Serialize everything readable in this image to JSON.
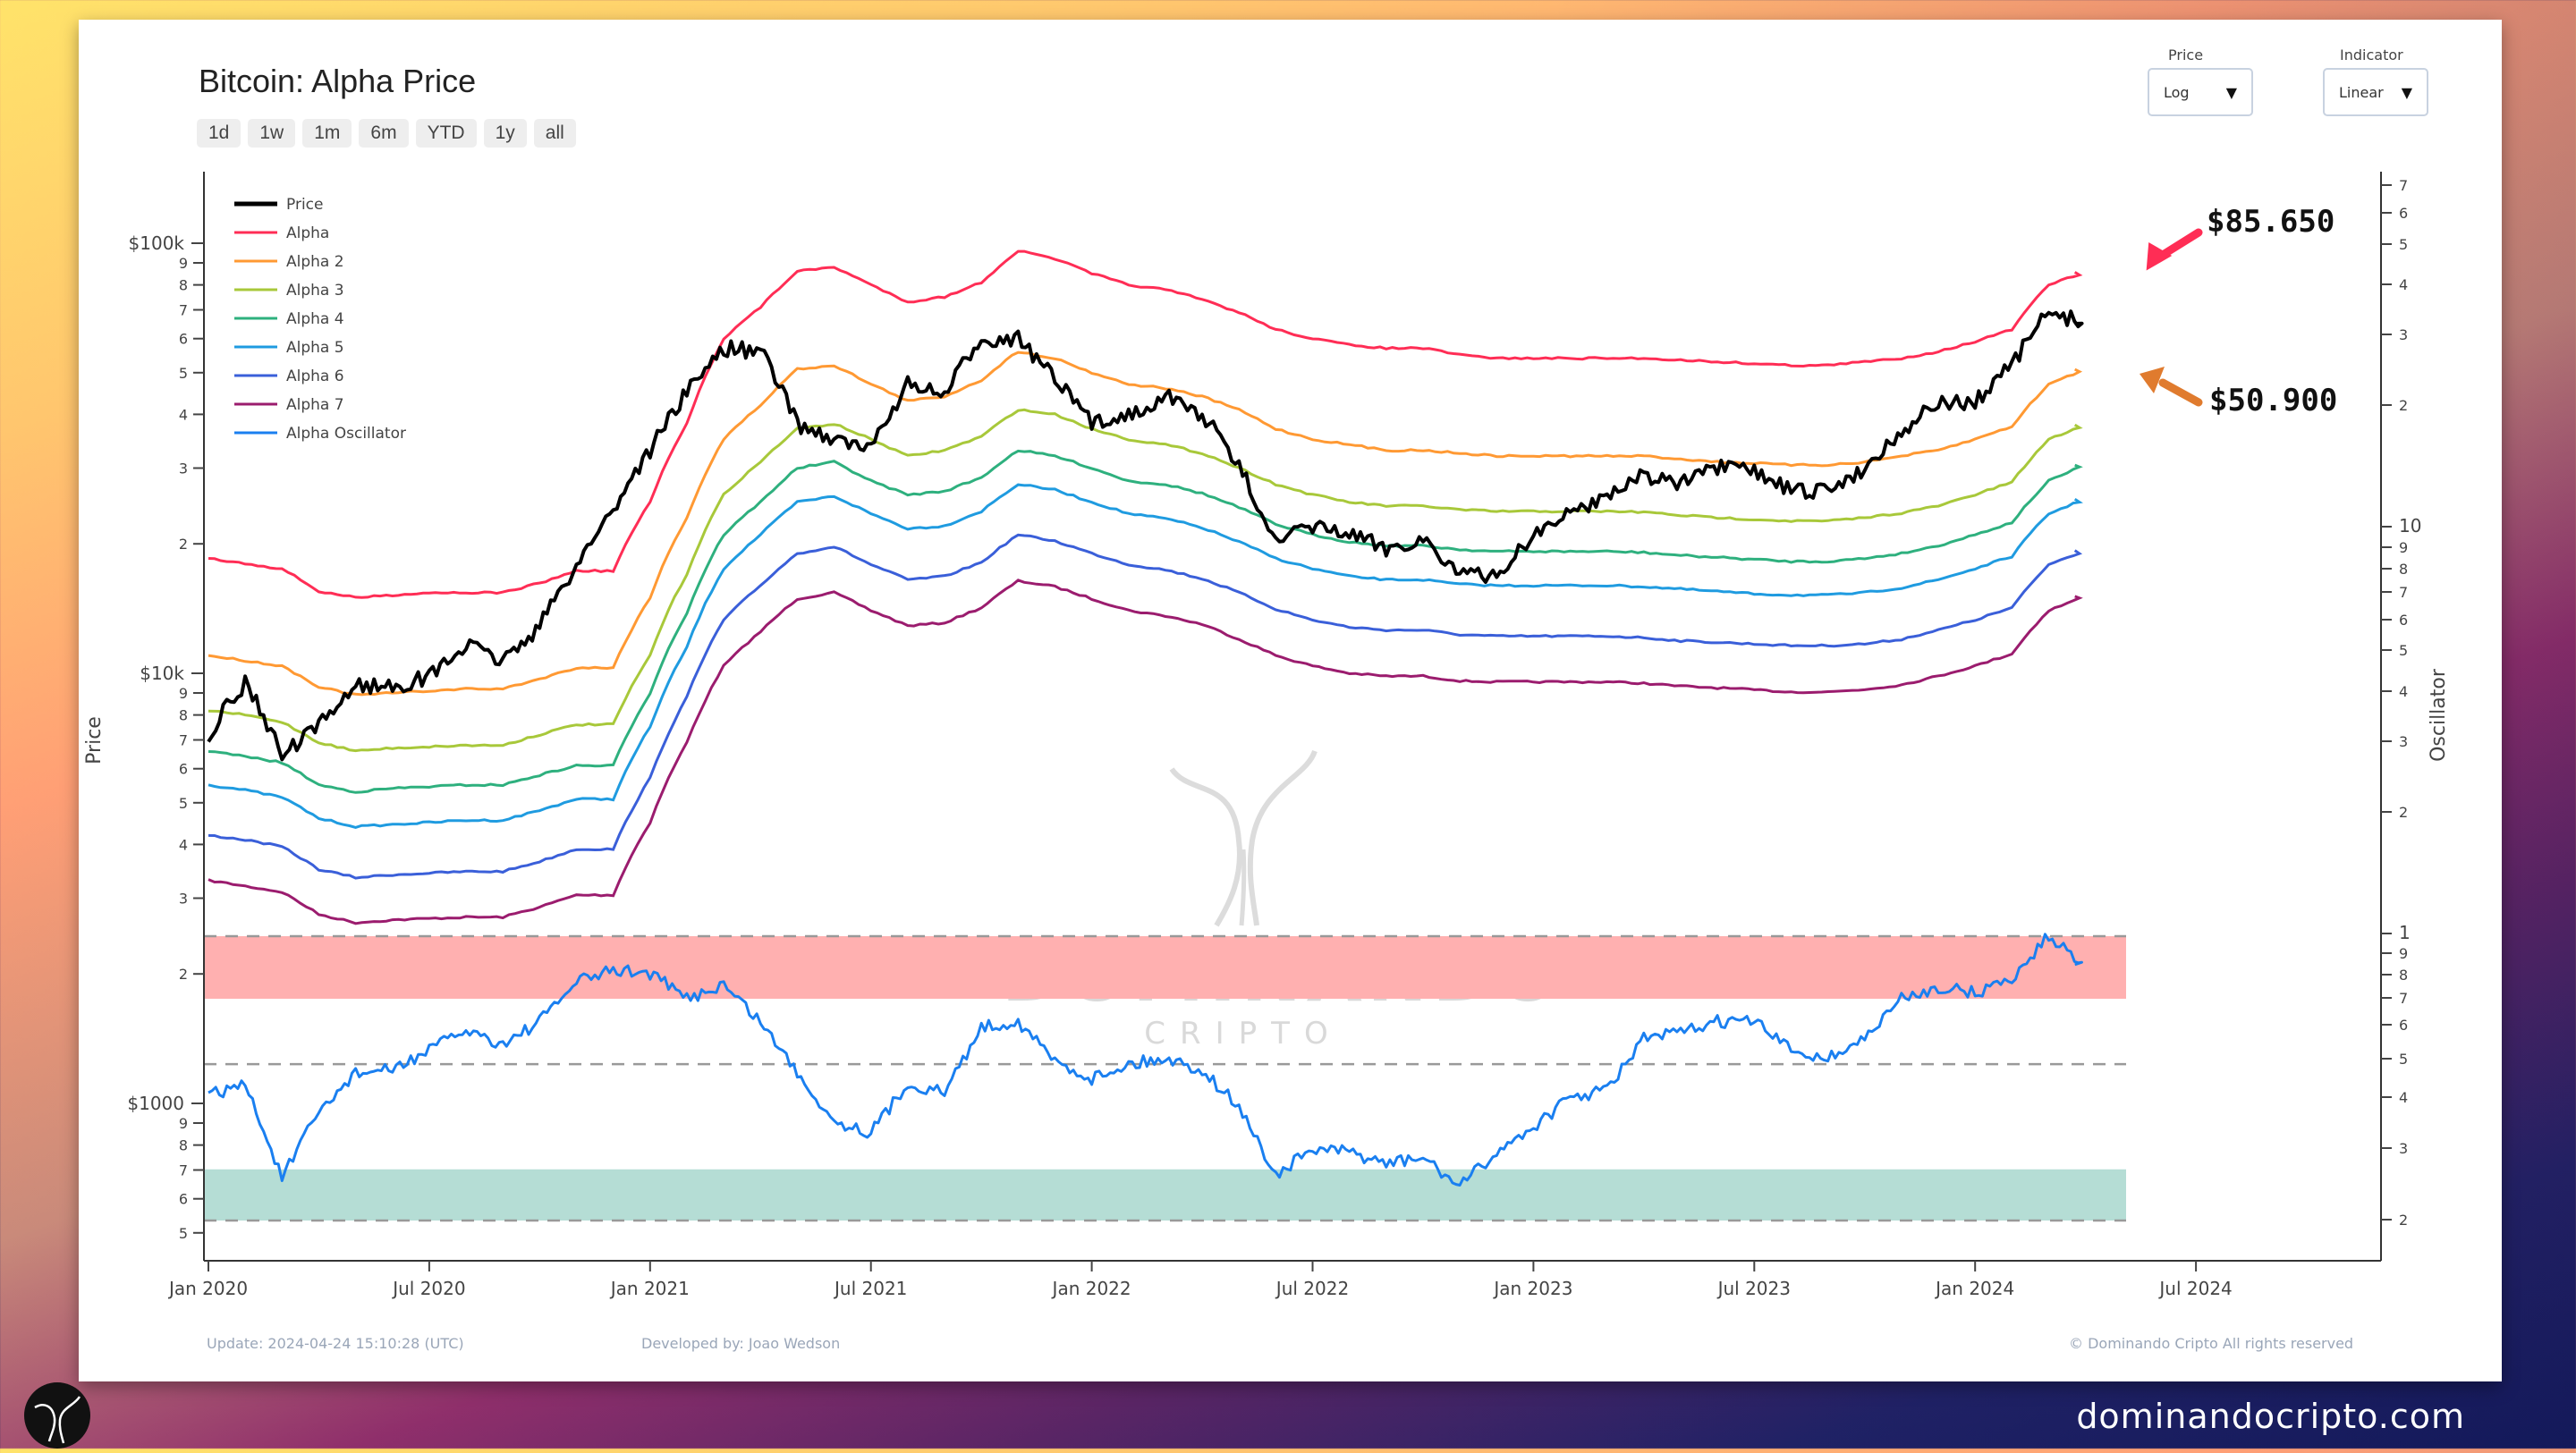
{
  "header": {
    "title": "Bitcoin: Alpha Price",
    "ranges": [
      "1d",
      "1w",
      "1m",
      "6m",
      "YTD",
      "1y",
      "all"
    ]
  },
  "controls": {
    "price_label": "Price",
    "price_value": "Log",
    "indicator_label": "Indicator",
    "indicator_value": "Linear"
  },
  "annotations": {
    "alpha_value": "$85.650",
    "alpha_color": "#ff2d55",
    "alpha2_value": "$50.900",
    "alpha2_color": "#e07b2e"
  },
  "footer": {
    "update": "Update: 2024-04-24 15:10:28 (UTC)",
    "developer": "Developed by: Joao Wedson",
    "copyright": "© Dominando Cripto All rights reserved"
  },
  "watermark": {
    "big": "DOMINANDO",
    "small": "CRIPTO"
  },
  "site": "dominandocripto.com",
  "chart_data": {
    "type": "line",
    "title": "Bitcoin: Alpha Price",
    "xlabel": "",
    "ylabel": "Price",
    "y2label": "Oscillator",
    "yscale": "log",
    "ylim": [
      470,
      140000
    ],
    "x_ticks": [
      "Jan 2020",
      "Jul 2020",
      "Jan 2021",
      "Jul 2021",
      "Jan 2022",
      "Jul 2022",
      "Jan 2023",
      "Jul 2023",
      "Jan 2024",
      "Jul 2024"
    ],
    "y_ticks_major": [
      "$1000",
      "$10k",
      "$100k"
    ],
    "y_ticks_minor": [
      "5",
      "6",
      "7",
      "8",
      "9",
      "2",
      "3",
      "4",
      "5",
      "6",
      "7",
      "8",
      "9",
      "2",
      "3",
      "4",
      "5",
      "6",
      "7",
      "8",
      "9"
    ],
    "y2_ticks": [
      "2",
      "3",
      "4",
      "5",
      "6",
      "7",
      "8",
      "9",
      "1",
      "2",
      "3",
      "4",
      "5",
      "6",
      "7",
      "8",
      "9",
      "10",
      "2",
      "3",
      "4",
      "5",
      "6",
      "7"
    ],
    "legend": [
      "Price",
      "Alpha",
      "Alpha 2",
      "Alpha 3",
      "Alpha 4",
      "Alpha 5",
      "Alpha 6",
      "Alpha 7",
      "Alpha Oscillator"
    ],
    "legend_position": "top-left",
    "grid": false,
    "x": [
      "2020-01",
      "2020-02",
      "2020-03",
      "2020-04",
      "2020-05",
      "2020-06",
      "2020-07",
      "2020-08",
      "2020-09",
      "2020-10",
      "2020-11",
      "2020-12",
      "2021-01",
      "2021-02",
      "2021-03",
      "2021-04",
      "2021-05",
      "2021-06",
      "2021-07",
      "2021-08",
      "2021-09",
      "2021-10",
      "2021-11",
      "2021-12",
      "2022-01",
      "2022-02",
      "2022-03",
      "2022-04",
      "2022-05",
      "2022-06",
      "2022-07",
      "2022-08",
      "2022-09",
      "2022-10",
      "2022-11",
      "2022-12",
      "2023-01",
      "2023-02",
      "2023-03",
      "2023-04",
      "2023-05",
      "2023-06",
      "2023-07",
      "2023-08",
      "2023-09",
      "2023-10",
      "2023-11",
      "2023-12",
      "2024-01",
      "2024-02",
      "2024-03",
      "2024-04"
    ],
    "series": [
      {
        "name": "Price",
        "color": "#000000",
        "width": 4,
        "values": [
          7200,
          9500,
          6400,
          7500,
          9400,
          9300,
          9800,
          11600,
          10700,
          12800,
          17800,
          24000,
          33000,
          45000,
          57000,
          56000,
          38000,
          35000,
          33000,
          47000,
          44000,
          60000,
          60000,
          48000,
          38000,
          40000,
          44000,
          40000,
          30000,
          20000,
          22000,
          21000,
          19500,
          20500,
          17000,
          16700,
          21000,
          23500,
          26000,
          29000,
          27500,
          30000,
          29500,
          26500,
          26500,
          30000,
          36500,
          42500,
          42500,
          52000,
          69000,
          65000
        ]
      },
      {
        "name": "Alpha",
        "color": "#ff2d55",
        "width": 3,
        "values": [
          18500,
          18000,
          17500,
          15500,
          15000,
          15200,
          15400,
          15400,
          15400,
          16200,
          17300,
          17300,
          25000,
          38000,
          60000,
          71000,
          86000,
          88000,
          80000,
          73000,
          75000,
          81000,
          96000,
          92000,
          85000,
          80000,
          78000,
          74000,
          69000,
          63000,
          60000,
          58000,
          57000,
          57000,
          55000,
          54000,
          54000,
          54000,
          54000,
          54000,
          53500,
          53000,
          52500,
          52000,
          52000,
          53000,
          54000,
          56000,
          59000,
          63000,
          80000,
          85650
        ]
      },
      {
        "name": "Alpha 2",
        "color": "#ff9933",
        "width": 3,
        "values": [
          11000,
          10700,
          10400,
          9300,
          8900,
          9000,
          9100,
          9200,
          9200,
          9700,
          10300,
          10300,
          15000,
          23000,
          35000,
          42000,
          51000,
          52000,
          47000,
          43000,
          44000,
          48000,
          56000,
          54000,
          50000,
          47000,
          46000,
          44000,
          41000,
          37000,
          35000,
          34000,
          33000,
          33000,
          32500,
          32000,
          32000,
          32000,
          32000,
          32000,
          31500,
          31000,
          30800,
          30500,
          30500,
          31000,
          32000,
          33000,
          35000,
          37500,
          47000,
          50900
        ]
      },
      {
        "name": "Alpha 3",
        "color": "#a8c83a",
        "width": 3,
        "values": [
          8200,
          8000,
          7700,
          6900,
          6600,
          6700,
          6750,
          6800,
          6800,
          7200,
          7600,
          7600,
          11000,
          17000,
          26000,
          31000,
          37000,
          38000,
          35000,
          32000,
          33000,
          35500,
          41000,
          40000,
          37000,
          35000,
          34000,
          32500,
          30000,
          27500,
          26000,
          25000,
          24500,
          24500,
          24000,
          23800,
          23800,
          23800,
          23800,
          23700,
          23300,
          23000,
          22800,
          22600,
          22600,
          23000,
          23600,
          24500,
          26000,
          27800,
          35000,
          37800
        ]
      },
      {
        "name": "Alpha 4",
        "color": "#2eb07e",
        "width": 3,
        "values": [
          6600,
          6400,
          6200,
          5500,
          5300,
          5400,
          5450,
          5500,
          5500,
          5800,
          6100,
          6100,
          9000,
          13800,
          21000,
          25000,
          30000,
          31000,
          28000,
          26000,
          26500,
          28500,
          33000,
          32000,
          30000,
          28000,
          27500,
          26200,
          24300,
          22200,
          21000,
          20200,
          19800,
          19800,
          19400,
          19200,
          19200,
          19200,
          19200,
          19100,
          18800,
          18600,
          18400,
          18200,
          18200,
          18500,
          19000,
          19800,
          21000,
          22400,
          28000,
          30500
        ]
      },
      {
        "name": "Alpha 5",
        "color": "#1f9be0",
        "width": 3,
        "values": [
          5500,
          5350,
          5150,
          4600,
          4400,
          4450,
          4500,
          4550,
          4550,
          4800,
          5100,
          5100,
          7500,
          11500,
          17500,
          21000,
          25000,
          25800,
          23500,
          21700,
          22000,
          23800,
          27500,
          26700,
          25000,
          23500,
          22900,
          21800,
          20200,
          18500,
          17500,
          16800,
          16500,
          16500,
          16100,
          16000,
          16000,
          16000,
          16000,
          15900,
          15700,
          15500,
          15300,
          15200,
          15200,
          15400,
          15800,
          16500,
          17500,
          18700,
          23500,
          25400
        ]
      },
      {
        "name": "Alpha 6",
        "color": "#3a5fd9",
        "width": 3,
        "values": [
          4200,
          4100,
          3950,
          3500,
          3350,
          3400,
          3430,
          3460,
          3460,
          3650,
          3900,
          3900,
          5700,
          8800,
          13300,
          16000,
          19000,
          19700,
          17900,
          16500,
          16800,
          18100,
          21000,
          20300,
          19000,
          17900,
          17400,
          16600,
          15400,
          14100,
          13300,
          12800,
          12600,
          12600,
          12300,
          12200,
          12200,
          12200,
          12200,
          12100,
          11900,
          11800,
          11700,
          11600,
          11600,
          11700,
          12000,
          12600,
          13300,
          14200,
          17900,
          19300
        ]
      },
      {
        "name": "Alpha 7",
        "color": "#9b1c6e",
        "width": 3,
        "values": [
          3300,
          3200,
          3100,
          2750,
          2630,
          2670,
          2690,
          2710,
          2710,
          2860,
          3050,
          3050,
          4500,
          6900,
          10400,
          12500,
          14900,
          15400,
          14000,
          12900,
          13100,
          14200,
          16400,
          15900,
          14900,
          14000,
          13600,
          13000,
          12000,
          11000,
          10400,
          10000,
          9850,
          9850,
          9600,
          9550,
          9550,
          9550,
          9550,
          9480,
          9330,
          9250,
          9150,
          9050,
          9050,
          9170,
          9400,
          9850,
          10400,
          11100,
          14000,
          15100
        ]
      }
    ],
    "oscillator": {
      "name": "Alpha Oscillator",
      "color": "#1a7ff0",
      "overbought_color": "#4b4fb5",
      "band_high": {
        "from": 0.78,
        "to": 1.0,
        "color": "#ffb0b0"
      },
      "band_low": {
        "from": 0.0,
        "to": 0.18,
        "color": "#b5ddd5"
      },
      "dashed_levels": [
        1.0,
        0.55,
        0.0
      ],
      "values": [
        0.44,
        0.48,
        0.15,
        0.38,
        0.52,
        0.53,
        0.6,
        0.67,
        0.62,
        0.7,
        0.84,
        0.88,
        0.87,
        0.78,
        0.83,
        0.7,
        0.52,
        0.35,
        0.31,
        0.48,
        0.45,
        0.68,
        0.7,
        0.56,
        0.5,
        0.55,
        0.57,
        0.53,
        0.4,
        0.16,
        0.25,
        0.24,
        0.2,
        0.22,
        0.12,
        0.24,
        0.33,
        0.43,
        0.46,
        0.64,
        0.66,
        0.7,
        0.7,
        0.6,
        0.57,
        0.64,
        0.78,
        0.82,
        0.8,
        0.85,
        1.0,
        0.9
      ]
    }
  }
}
